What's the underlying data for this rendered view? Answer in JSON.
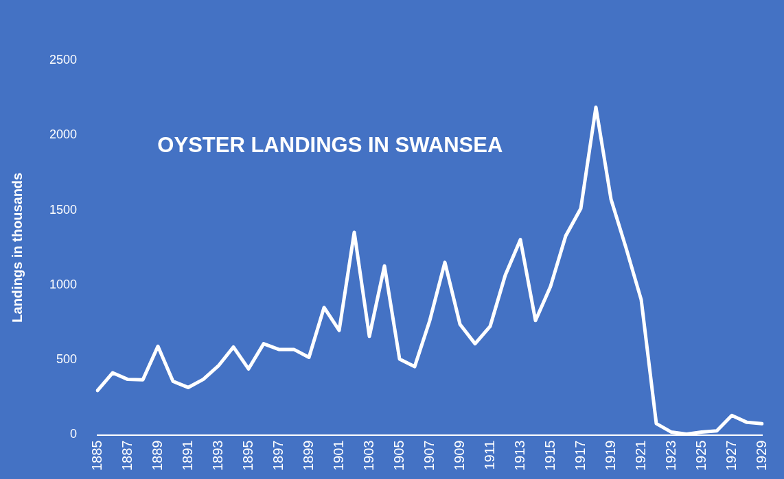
{
  "chart_data": {
    "type": "line",
    "title": "OYSTER LANDINGS IN SWANSEA",
    "ylabel": "Landings in thousands",
    "categories": [
      "1885",
      null,
      "1887",
      null,
      "1889",
      null,
      "1891",
      null,
      "1893",
      null,
      "1895",
      null,
      "1897",
      null,
      "1899",
      null,
      "1901",
      null,
      "1903",
      null,
      "1905",
      null,
      "1907",
      null,
      "1909",
      null,
      "1911",
      null,
      "1913",
      null,
      "1915",
      null,
      "1917",
      null,
      "1919",
      null,
      "1921",
      null,
      "1923",
      null,
      "1925",
      null,
      "1927",
      null,
      "1929"
    ],
    "series": [
      {
        "color": "#ffffff",
        "values": [
          296,
          414,
          370,
          367,
          591,
          357,
          316,
          370,
          460,
          586,
          440,
          608,
          570,
          570,
          517,
          850,
          697,
          1352,
          657,
          1128,
          506,
          455,
          763,
          1151,
          738,
          608,
          725,
          1066,
          1303,
          763,
          992,
          1328,
          1511,
          2187,
          1573,
          1246,
          902,
          75,
          18,
          5,
          18,
          26,
          129,
          83,
          74
        ]
      }
    ],
    "ylim": [
      0,
      2500
    ],
    "yticks": [
      0,
      500,
      1000,
      1500,
      2000,
      2500
    ],
    "grid": false,
    "legend": false,
    "marker": "none",
    "line_style": "solid"
  }
}
